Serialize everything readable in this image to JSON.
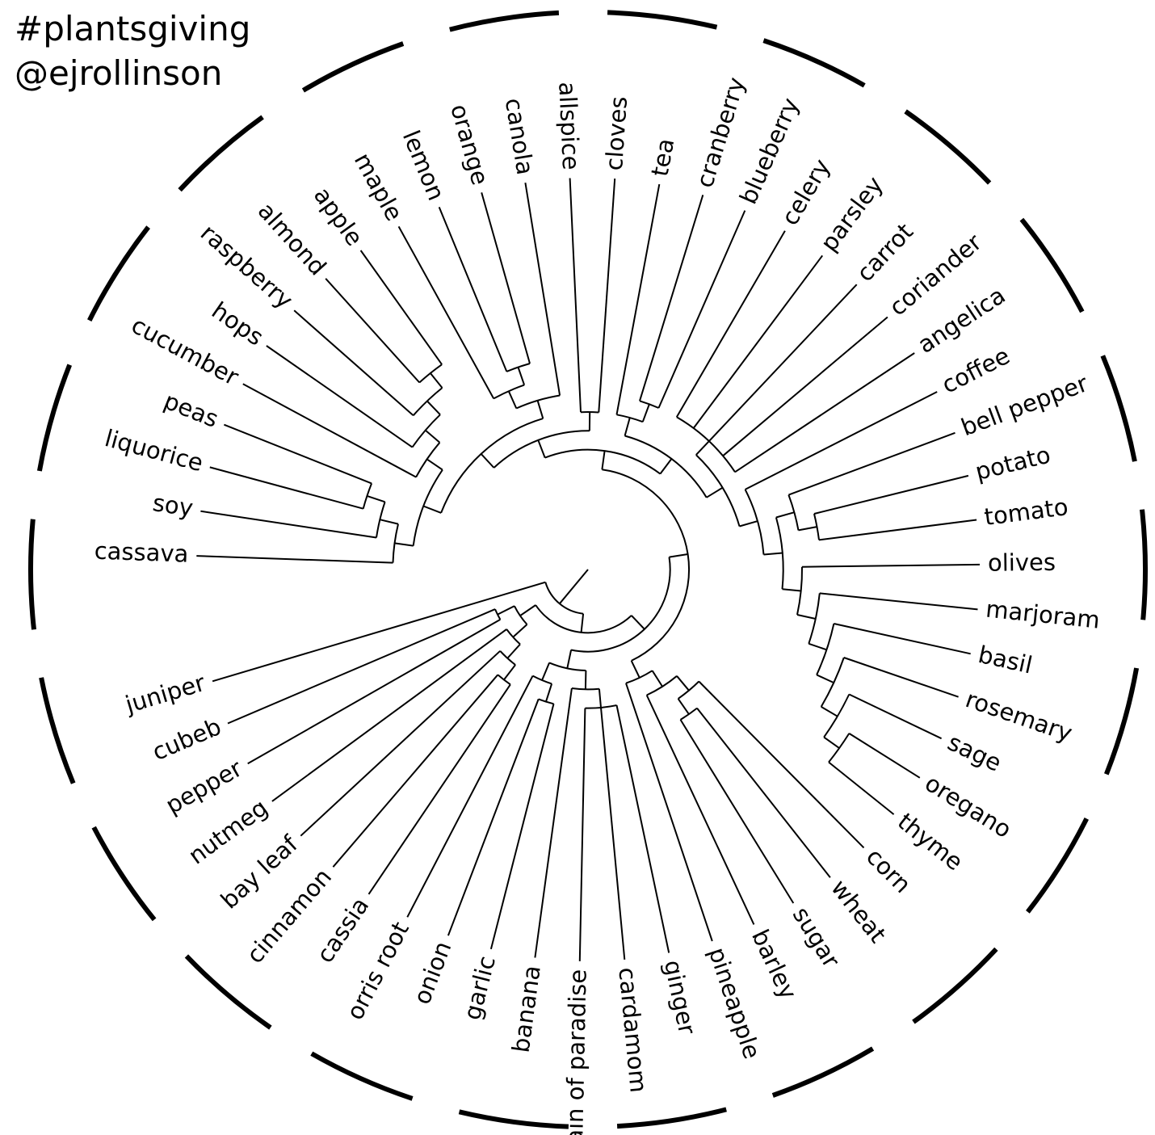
{
  "header": {
    "hashtag": "#plantsgiving",
    "handle": "@ejrollinson"
  },
  "colors": {
    "lines": "#000000",
    "background": "#ffffff"
  },
  "tree": {
    "name": "",
    "children": [
      {
        "name": "",
        "children": [
          {
            "name": "",
            "children": [
              {
                "name": "",
                "children": [
                  {
                    "name": "",
                    "children": [
                      {
                        "name": "",
                        "children": [
                          {
                            "name": "",
                            "children": [
                              {
                                "name": "",
                                "children": [
                                  {
                                    "name": "",
                                    "children": [
                                      {
                                        "name": "cassava"
                                      },
                                      {
                                        "name": "",
                                        "children": [
                                          {
                                            "name": "soy"
                                          },
                                          {
                                            "name": "",
                                            "children": [
                                              {
                                                "name": "liquorice"
                                              },
                                              {
                                                "name": "peas"
                                              }
                                            ]
                                          }
                                        ]
                                      }
                                    ]
                                  },
                                  {
                                    "name": "",
                                    "children": [
                                      {
                                        "name": "cucumber"
                                      },
                                      {
                                        "name": "",
                                        "children": [
                                          {
                                            "name": "hops"
                                          },
                                          {
                                            "name": "",
                                            "children": [
                                              {
                                                "name": "raspberry"
                                              },
                                              {
                                                "name": "",
                                                "children": [
                                                  {
                                                    "name": "almond"
                                                  },
                                                  {
                                                    "name": "apple"
                                                  }
                                                ]
                                              }
                                            ]
                                          }
                                        ]
                                      }
                                    ]
                                  }
                                ]
                              },
                              {
                                "name": "",
                                "children": [
                                  {
                                    "name": "",
                                    "children": [
                                      {
                                        "name": "maple"
                                      },
                                      {
                                        "name": "",
                                        "children": [
                                          {
                                            "name": "lemon"
                                          },
                                          {
                                            "name": "orange"
                                          }
                                        ]
                                      }
                                    ]
                                  },
                                  {
                                    "name": "canola"
                                  }
                                ]
                              }
                            ]
                          },
                          {
                            "name": "",
                            "children": [
                              {
                                "name": "allspice"
                              },
                              {
                                "name": "cloves"
                              }
                            ]
                          }
                        ]
                      },
                      {
                        "name": "",
                        "children": [
                          {
                            "name": "",
                            "children": [
                              {
                                "name": "tea"
                              },
                              {
                                "name": "",
                                "children": [
                                  {
                                    "name": "cranberry"
                                  },
                                  {
                                    "name": "blueberry"
                                  }
                                ]
                              }
                            ]
                          },
                          {
                            "name": "",
                            "children": [
                              {
                                "name": "",
                                "children": [
                                  {
                                    "name": "celery"
                                  },
                                  {
                                    "name": "parsley"
                                  },
                                  {
                                    "name": "carrot"
                                  },
                                  {
                                    "name": "coriander"
                                  },
                                  {
                                    "name": "angelica"
                                  }
                                ]
                              },
                              {
                                "name": "",
                                "children": [
                                  {
                                    "name": "coffee"
                                  },
                                  {
                                    "name": "",
                                    "children": [
                                      {
                                        "name": "",
                                        "children": [
                                          {
                                            "name": "bell pepper"
                                          },
                                          {
                                            "name": "",
                                            "children": [
                                              {
                                                "name": "potato"
                                              },
                                              {
                                                "name": "tomato"
                                              }
                                            ]
                                          }
                                        ]
                                      },
                                      {
                                        "name": "",
                                        "children": [
                                          {
                                            "name": "olives"
                                          },
                                          {
                                            "name": "",
                                            "children": [
                                              {
                                                "name": "marjoram"
                                              },
                                              {
                                                "name": "",
                                                "children": [
                                                  {
                                                    "name": "basil"
                                                  },
                                                  {
                                                    "name": "",
                                                    "children": [
                                                      {
                                                        "name": "rosemary"
                                                      },
                                                      {
                                                        "name": "",
                                                        "children": [
                                                          {
                                                            "name": "sage"
                                                          },
                                                          {
                                                            "name": "",
                                                            "children": [
                                                              {
                                                                "name": "oregano"
                                                              },
                                                              {
                                                                "name": "thyme"
                                                              }
                                                            ]
                                                          }
                                                        ]
                                                      }
                                                    ]
                                                  }
                                                ]
                                              }
                                            ]
                                          }
                                        ]
                                      }
                                    ]
                                  }
                                ]
                              }
                            ]
                          }
                        ]
                      }
                    ]
                  },
                  {
                    "name": "",
                    "children": [
                      {
                        "name": "",
                        "children": [
                          {
                            "name": "",
                            "children": [
                              {
                                "name": "corn"
                              },
                              {
                                "name": "",
                                "children": [
                                  {
                                    "name": "wheat"
                                  },
                                  {
                                    "name": "sugar"
                                  }
                                ]
                              }
                            ]
                          },
                          {
                            "name": "barley"
                          }
                        ]
                      },
                      {
                        "name": "pineapple"
                      }
                    ]
                  }
                ]
              },
              {
                "name": "",
                "children": [
                  {
                    "name": "",
                    "children": [
                      {
                        "name": "",
                        "children": [
                          {
                            "name": "ginger"
                          },
                          {
                            "name": "cardamom"
                          },
                          {
                            "name": "grain of paradise"
                          }
                        ]
                      },
                      {
                        "name": "banana"
                      }
                    ]
                  },
                  {
                    "name": "",
                    "children": [
                      {
                        "name": "",
                        "children": [
                          {
                            "name": "garlic"
                          },
                          {
                            "name": "onion"
                          }
                        ]
                      },
                      {
                        "name": "orris root"
                      }
                    ]
                  }
                ]
              }
            ]
          },
          {
            "name": "",
            "children": [
              {
                "name": "",
                "children": [
                  {
                    "name": "",
                    "children": [
                      {
                        "name": "",
                        "children": [
                          {
                            "name": "cassia"
                          },
                          {
                            "name": "cinnamon"
                          }
                        ]
                      },
                      {
                        "name": "bay leaf"
                      }
                    ]
                  },
                  {
                    "name": "nutmeg"
                  }
                ]
              },
              {
                "name": "",
                "children": [
                  {
                    "name": "pepper"
                  },
                  {
                    "name": "cubeb"
                  }
                ]
              }
            ]
          }
        ]
      },
      {
        "name": "juniper"
      }
    ]
  }
}
